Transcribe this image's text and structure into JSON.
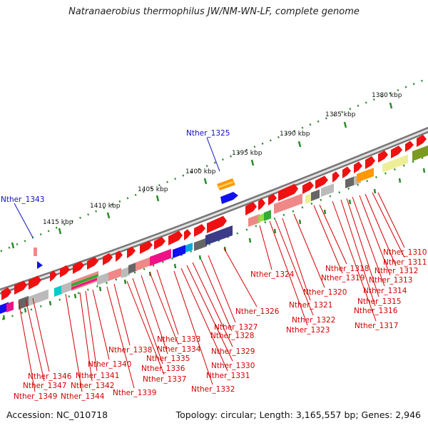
{
  "title": "Natranaerobius thermophilus JW/NM-WN-LF, complete genome",
  "accession_label": "Accession: NC_010718",
  "topology_label": "Topology: circular; Length: 3,165,557 bp; Genes: 2,946",
  "colors": {
    "backbone_dark": "#777777",
    "backbone_light": "#dddddd",
    "gene_red": "#ee1111",
    "gene_label": "#d40000",
    "gene_label_blue": "#1010c0",
    "tick_green": "#2a8a2a",
    "pink": "#f08888",
    "magenta": "#ee1188",
    "navy": "#3a3a88",
    "blue": "#1010ee",
    "orange": "#ff9900",
    "olive": "#7a9a20",
    "khaki": "#eeee99",
    "gray": "#888888",
    "cyan": "#00cccc"
  },
  "scale_labels": [
    "1380 kbp",
    "1385 kbp",
    "1390 kbp",
    "1395 kbp",
    "1400 kbp",
    "1405 kbp",
    "1410 kbp",
    "1415 kbp"
  ],
  "gene_labels_red": [
    "Nther_1310",
    "Nther_1311",
    "Nther_1312",
    "Nther_1313",
    "Nther_1314",
    "Nther_1315",
    "Nther_1316",
    "Nther_1317",
    "Nther_1318",
    "Nther_1319",
    "Nther_1320",
    "Nther_1321",
    "Nther_1322",
    "Nther_1323",
    "Nther_1324",
    "Nther_1326",
    "Nther_1327",
    "Nther_1328",
    "Nther_1329",
    "Nther_1330",
    "Nther_1331",
    "Nther_1332",
    "Nther_1333",
    "Nther_1334",
    "Nther_1335",
    "Nther_1336",
    "Nther_1337",
    "Nther_1338",
    "Nther_1339",
    "Nther_1340",
    "Nther_1341",
    "Nther_1342",
    "Nther_1344",
    "Nther_1346",
    "Nther_1347",
    "Nther_1349"
  ],
  "gene_labels_blue": [
    "Nther_1325",
    "Nther_1343"
  ]
}
